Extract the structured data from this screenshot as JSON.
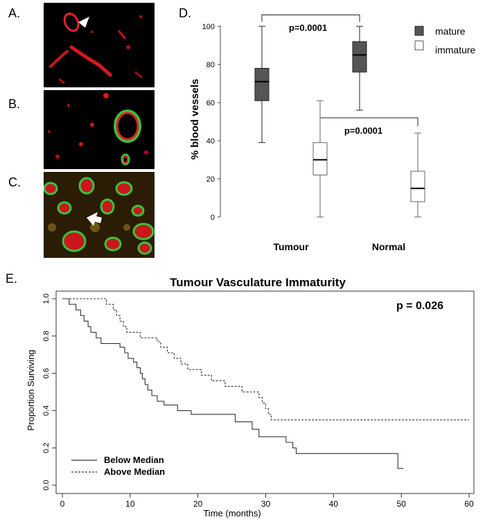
{
  "panels": {
    "a": "A.",
    "b": "B.",
    "c": "C.",
    "d": "D.",
    "e": "E."
  },
  "colors": {
    "mature_fill": "#555555",
    "immature_fill": "#ffffff",
    "vessel_red": "#e8202a",
    "vessel_green": "#39c43a",
    "micro_background": "#000000"
  },
  "chart_data": [
    {
      "type": "box",
      "panel": "D.",
      "ylabel": "% blood vessels",
      "categories": [
        "Tumour",
        "Normal"
      ],
      "yticks": [
        0,
        20,
        40,
        60,
        80,
        100
      ],
      "ylim": [
        0,
        100
      ],
      "legend": [
        {
          "label": "mature",
          "fill": "#555555"
        },
        {
          "label": "immature",
          "fill": "#ffffff"
        }
      ],
      "legend_position": "top-right",
      "series": [
        {
          "name": "mature",
          "boxes": [
            {
              "category": "Tumour",
              "min": 39,
              "q1": 61,
              "median": 71,
              "q3": 78,
              "max": 100
            },
            {
              "category": "Normal",
              "min": 56,
              "q1": 76,
              "median": 85,
              "q3": 92,
              "max": 100
            }
          ]
        },
        {
          "name": "immature",
          "boxes": [
            {
              "category": "Tumour",
              "min": 0,
              "q1": 22,
              "median": 30,
              "q3": 39,
              "max": 61
            },
            {
              "category": "Normal",
              "min": 0,
              "q1": 8,
              "median": 15,
              "q3": 24,
              "max": 44
            }
          ]
        }
      ],
      "annotations": [
        {
          "text": "p=0.0001",
          "between": [
            "mature Tumour",
            "mature Normal"
          ],
          "bracket_y": 106
        },
        {
          "text": "p=0.0001",
          "between": [
            "immature Tumour",
            "immature Normal"
          ],
          "bracket_y": 52
        }
      ]
    },
    {
      "type": "line",
      "subtype": "kaplan-meier",
      "panel": "E.",
      "title": "Tumour Vasculature Immaturity",
      "xlabel": "Time (months)",
      "ylabel": "Proportion Surviving",
      "xlim": [
        0,
        60
      ],
      "ylim": [
        0,
        1
      ],
      "xticks": [
        0,
        10,
        20,
        30,
        40,
        50,
        60
      ],
      "yticks": [
        "0.0",
        "0.2",
        "0.4",
        "0.6",
        "0.8",
        "1.0"
      ],
      "annotation": "p = 0.026",
      "legend_position": "bottom-left",
      "series": [
        {
          "name": "Below Median",
          "style": "solid",
          "points": [
            [
              0,
              1.0
            ],
            [
              1,
              0.97
            ],
            [
              2,
              0.94
            ],
            [
              2.7,
              0.91
            ],
            [
              3.2,
              0.88
            ],
            [
              3.8,
              0.85
            ],
            [
              4.2,
              0.82
            ],
            [
              5,
              0.79
            ],
            [
              5.7,
              0.76
            ],
            [
              8.5,
              0.74
            ],
            [
              9.2,
              0.71
            ],
            [
              9.7,
              0.68
            ],
            [
              10.5,
              0.66
            ],
            [
              11,
              0.63
            ],
            [
              11.5,
              0.6
            ],
            [
              11.8,
              0.57
            ],
            [
              12.2,
              0.54
            ],
            [
              12.6,
              0.51
            ],
            [
              13.2,
              0.48
            ],
            [
              14,
              0.45
            ],
            [
              15,
              0.43
            ],
            [
              17,
              0.4
            ],
            [
              19,
              0.38
            ],
            [
              25.5,
              0.34
            ],
            [
              28,
              0.3
            ],
            [
              29,
              0.26
            ],
            [
              33,
              0.23
            ],
            [
              34,
              0.2
            ],
            [
              34.5,
              0.17
            ],
            [
              49.5,
              0.09
            ],
            [
              50.3,
              0.09
            ]
          ]
        },
        {
          "name": "Above Median",
          "style": "dashed",
          "points": [
            [
              0,
              1.0
            ],
            [
              6.5,
              0.97
            ],
            [
              7.5,
              0.94
            ],
            [
              8,
              0.91
            ],
            [
              8.5,
              0.88
            ],
            [
              9,
              0.85
            ],
            [
              9.5,
              0.82
            ],
            [
              11.5,
              0.79
            ],
            [
              14,
              0.77
            ],
            [
              14.5,
              0.74
            ],
            [
              15.5,
              0.71
            ],
            [
              16.5,
              0.68
            ],
            [
              17.5,
              0.65
            ],
            [
              18.5,
              0.62
            ],
            [
              20.5,
              0.59
            ],
            [
              22,
              0.56
            ],
            [
              24,
              0.53
            ],
            [
              26.5,
              0.5
            ],
            [
              29,
              0.47
            ],
            [
              29.5,
              0.44
            ],
            [
              30,
              0.41
            ],
            [
              30.4,
              0.38
            ],
            [
              30.8,
              0.35
            ],
            [
              60,
              0.35
            ]
          ]
        }
      ]
    }
  ]
}
